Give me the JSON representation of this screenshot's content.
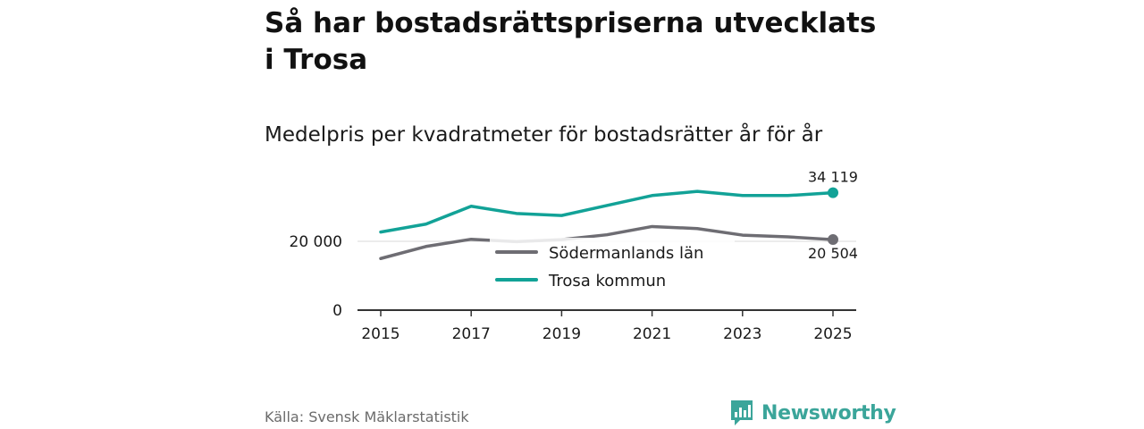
{
  "header": {
    "title": "Så har bostadsrättspriserna utvecklats i Trosa",
    "subtitle": "Medelpris per kvadratmeter för bostadsrätter år för år"
  },
  "footer": {
    "source": "Källa: Svensk Mäklarstatistik",
    "brand": "Newsworthy"
  },
  "colors": {
    "trosa": "#12a297",
    "sodermanland": "#6e6d73",
    "grid": "#d9d9d9",
    "axis": "#333333",
    "brand": "#3ba59a"
  },
  "chart_data": {
    "type": "line",
    "title": "Så har bostadsrättspriserna utvecklats i Trosa",
    "subtitle": "Medelpris per kvadratmeter för bostadsrätter år för år",
    "xlabel": "",
    "ylabel": "",
    "x": [
      2015,
      2016,
      2017,
      2018,
      2019,
      2020,
      2021,
      2022,
      2023,
      2024,
      2025
    ],
    "xticks": [
      "2015",
      "2017",
      "2019",
      "2021",
      "2023",
      "2025"
    ],
    "yticks": [
      {
        "value": 0,
        "label": "0"
      },
      {
        "value": 20000,
        "label": "20 000"
      }
    ],
    "ylim": [
      0,
      38000
    ],
    "grid": true,
    "legend_position": "center",
    "series": [
      {
        "name": "Södermanlands län",
        "color_key": "sodermanland",
        "values": [
          15000,
          18500,
          20600,
          19900,
          20500,
          21900,
          24300,
          23700,
          21800,
          21300,
          20504
        ],
        "end_label": "20 504"
      },
      {
        "name": "Trosa kommun",
        "color_key": "trosa",
        "values": [
          22700,
          25000,
          30200,
          28100,
          27500,
          30400,
          33300,
          34500,
          33300,
          33300,
          34119
        ],
        "end_label": "34 119"
      }
    ]
  }
}
